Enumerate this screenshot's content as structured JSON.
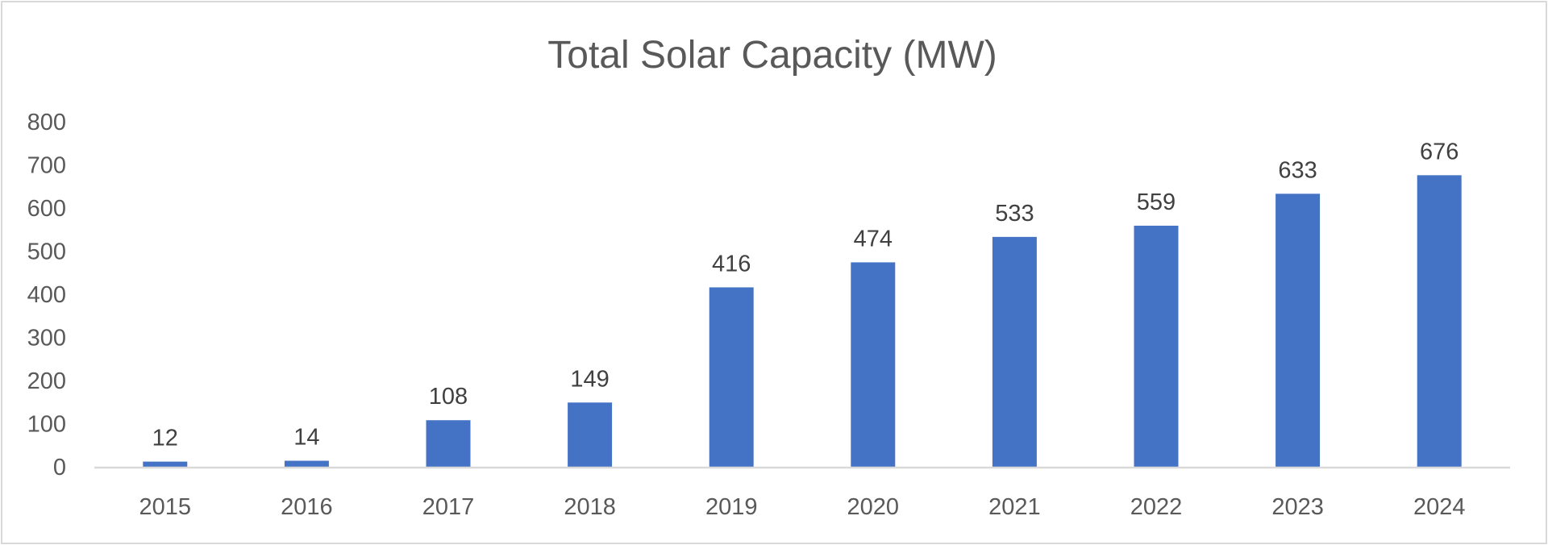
{
  "chart_data": {
    "type": "bar",
    "title": "Total Solar Capacity (MW)",
    "xlabel": "",
    "ylabel": "",
    "categories": [
      "2015",
      "2016",
      "2017",
      "2018",
      "2019",
      "2020",
      "2021",
      "2022",
      "2023",
      "2024"
    ],
    "values": [
      12,
      14,
      108,
      149,
      416,
      474,
      533,
      559,
      633,
      676
    ],
    "data_labels": [
      "12",
      "14",
      "108",
      "149",
      "416",
      "474",
      "533",
      "559",
      "633",
      "676"
    ],
    "ylim": [
      0,
      800
    ],
    "yticks": [
      0,
      100,
      200,
      300,
      400,
      500,
      600,
      700,
      800
    ],
    "ytick_labels": [
      "0",
      "100",
      "200",
      "300",
      "400",
      "500",
      "600",
      "700",
      "800"
    ],
    "grid": false,
    "legend": "none",
    "colors": {
      "bar": "#4472c4",
      "axis": "#d9d9d9",
      "title": "#595959",
      "tick": "#595959",
      "data_label": "#404040"
    }
  }
}
